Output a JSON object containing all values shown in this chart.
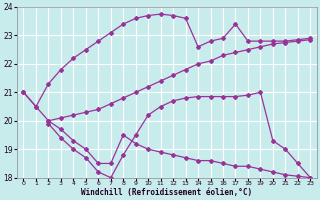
{
  "background_color": "#c8ecec",
  "line_color": "#993399",
  "grid_color": "#ffffff",
  "xlabel": "Windchill (Refroidissement éolien,°C)",
  "ylim": [
    18,
    24
  ],
  "xlim": [
    -0.5,
    23.5
  ],
  "yticks": [
    18,
    19,
    20,
    21,
    22,
    23,
    24
  ],
  "xticks": [
    0,
    1,
    2,
    3,
    4,
    5,
    6,
    7,
    8,
    9,
    10,
    11,
    12,
    13,
    14,
    15,
    16,
    17,
    18,
    19,
    20,
    21,
    22,
    23
  ],
  "line1_x": [
    0,
    1,
    2,
    3,
    4,
    5,
    6,
    7,
    8,
    9,
    10,
    11,
    12,
    13,
    14,
    15,
    16,
    17,
    18,
    19,
    20,
    21,
    22,
    23
  ],
  "line1_y": [
    21.0,
    20.5,
    21.3,
    21.8,
    22.2,
    22.5,
    22.8,
    23.1,
    23.4,
    23.6,
    23.7,
    23.75,
    23.7,
    23.6,
    22.6,
    22.8,
    22.9,
    23.4,
    22.8,
    22.8,
    22.8,
    22.8,
    22.85,
    22.9
  ],
  "line2_x": [
    0,
    1,
    2,
    3,
    4,
    5,
    6,
    7,
    8,
    9,
    10,
    11,
    12,
    13,
    14,
    15,
    16,
    17,
    18,
    19,
    20,
    21,
    22,
    23
  ],
  "line2_y": [
    21.0,
    20.5,
    20.0,
    20.1,
    20.2,
    20.3,
    20.4,
    20.6,
    20.8,
    21.0,
    21.2,
    21.4,
    21.6,
    21.8,
    22.0,
    22.1,
    22.3,
    22.4,
    22.5,
    22.6,
    22.7,
    22.75,
    22.8,
    22.85
  ],
  "line3_x": [
    2,
    3,
    4,
    5,
    6,
    7,
    8,
    9,
    10,
    11,
    12,
    13,
    14,
    15,
    16,
    17,
    18,
    19,
    20,
    21,
    22,
    23
  ],
  "line3_y": [
    19.9,
    19.4,
    19.0,
    18.7,
    18.2,
    18.0,
    18.8,
    19.5,
    20.2,
    20.5,
    20.7,
    20.8,
    20.85,
    20.85,
    20.85,
    20.85,
    20.9,
    21.0,
    19.3,
    19.0,
    18.5,
    18.0
  ],
  "line4_x": [
    2,
    3,
    4,
    5,
    6,
    7,
    8,
    9,
    10,
    11,
    12,
    13,
    14,
    15,
    16,
    17,
    18,
    19,
    20,
    21,
    22,
    23
  ],
  "line4_y": [
    20.0,
    19.7,
    19.3,
    19.0,
    18.5,
    18.5,
    19.5,
    19.2,
    19.0,
    18.9,
    18.8,
    18.7,
    18.6,
    18.6,
    18.5,
    18.4,
    18.4,
    18.3,
    18.2,
    18.1,
    18.05,
    18.0
  ]
}
